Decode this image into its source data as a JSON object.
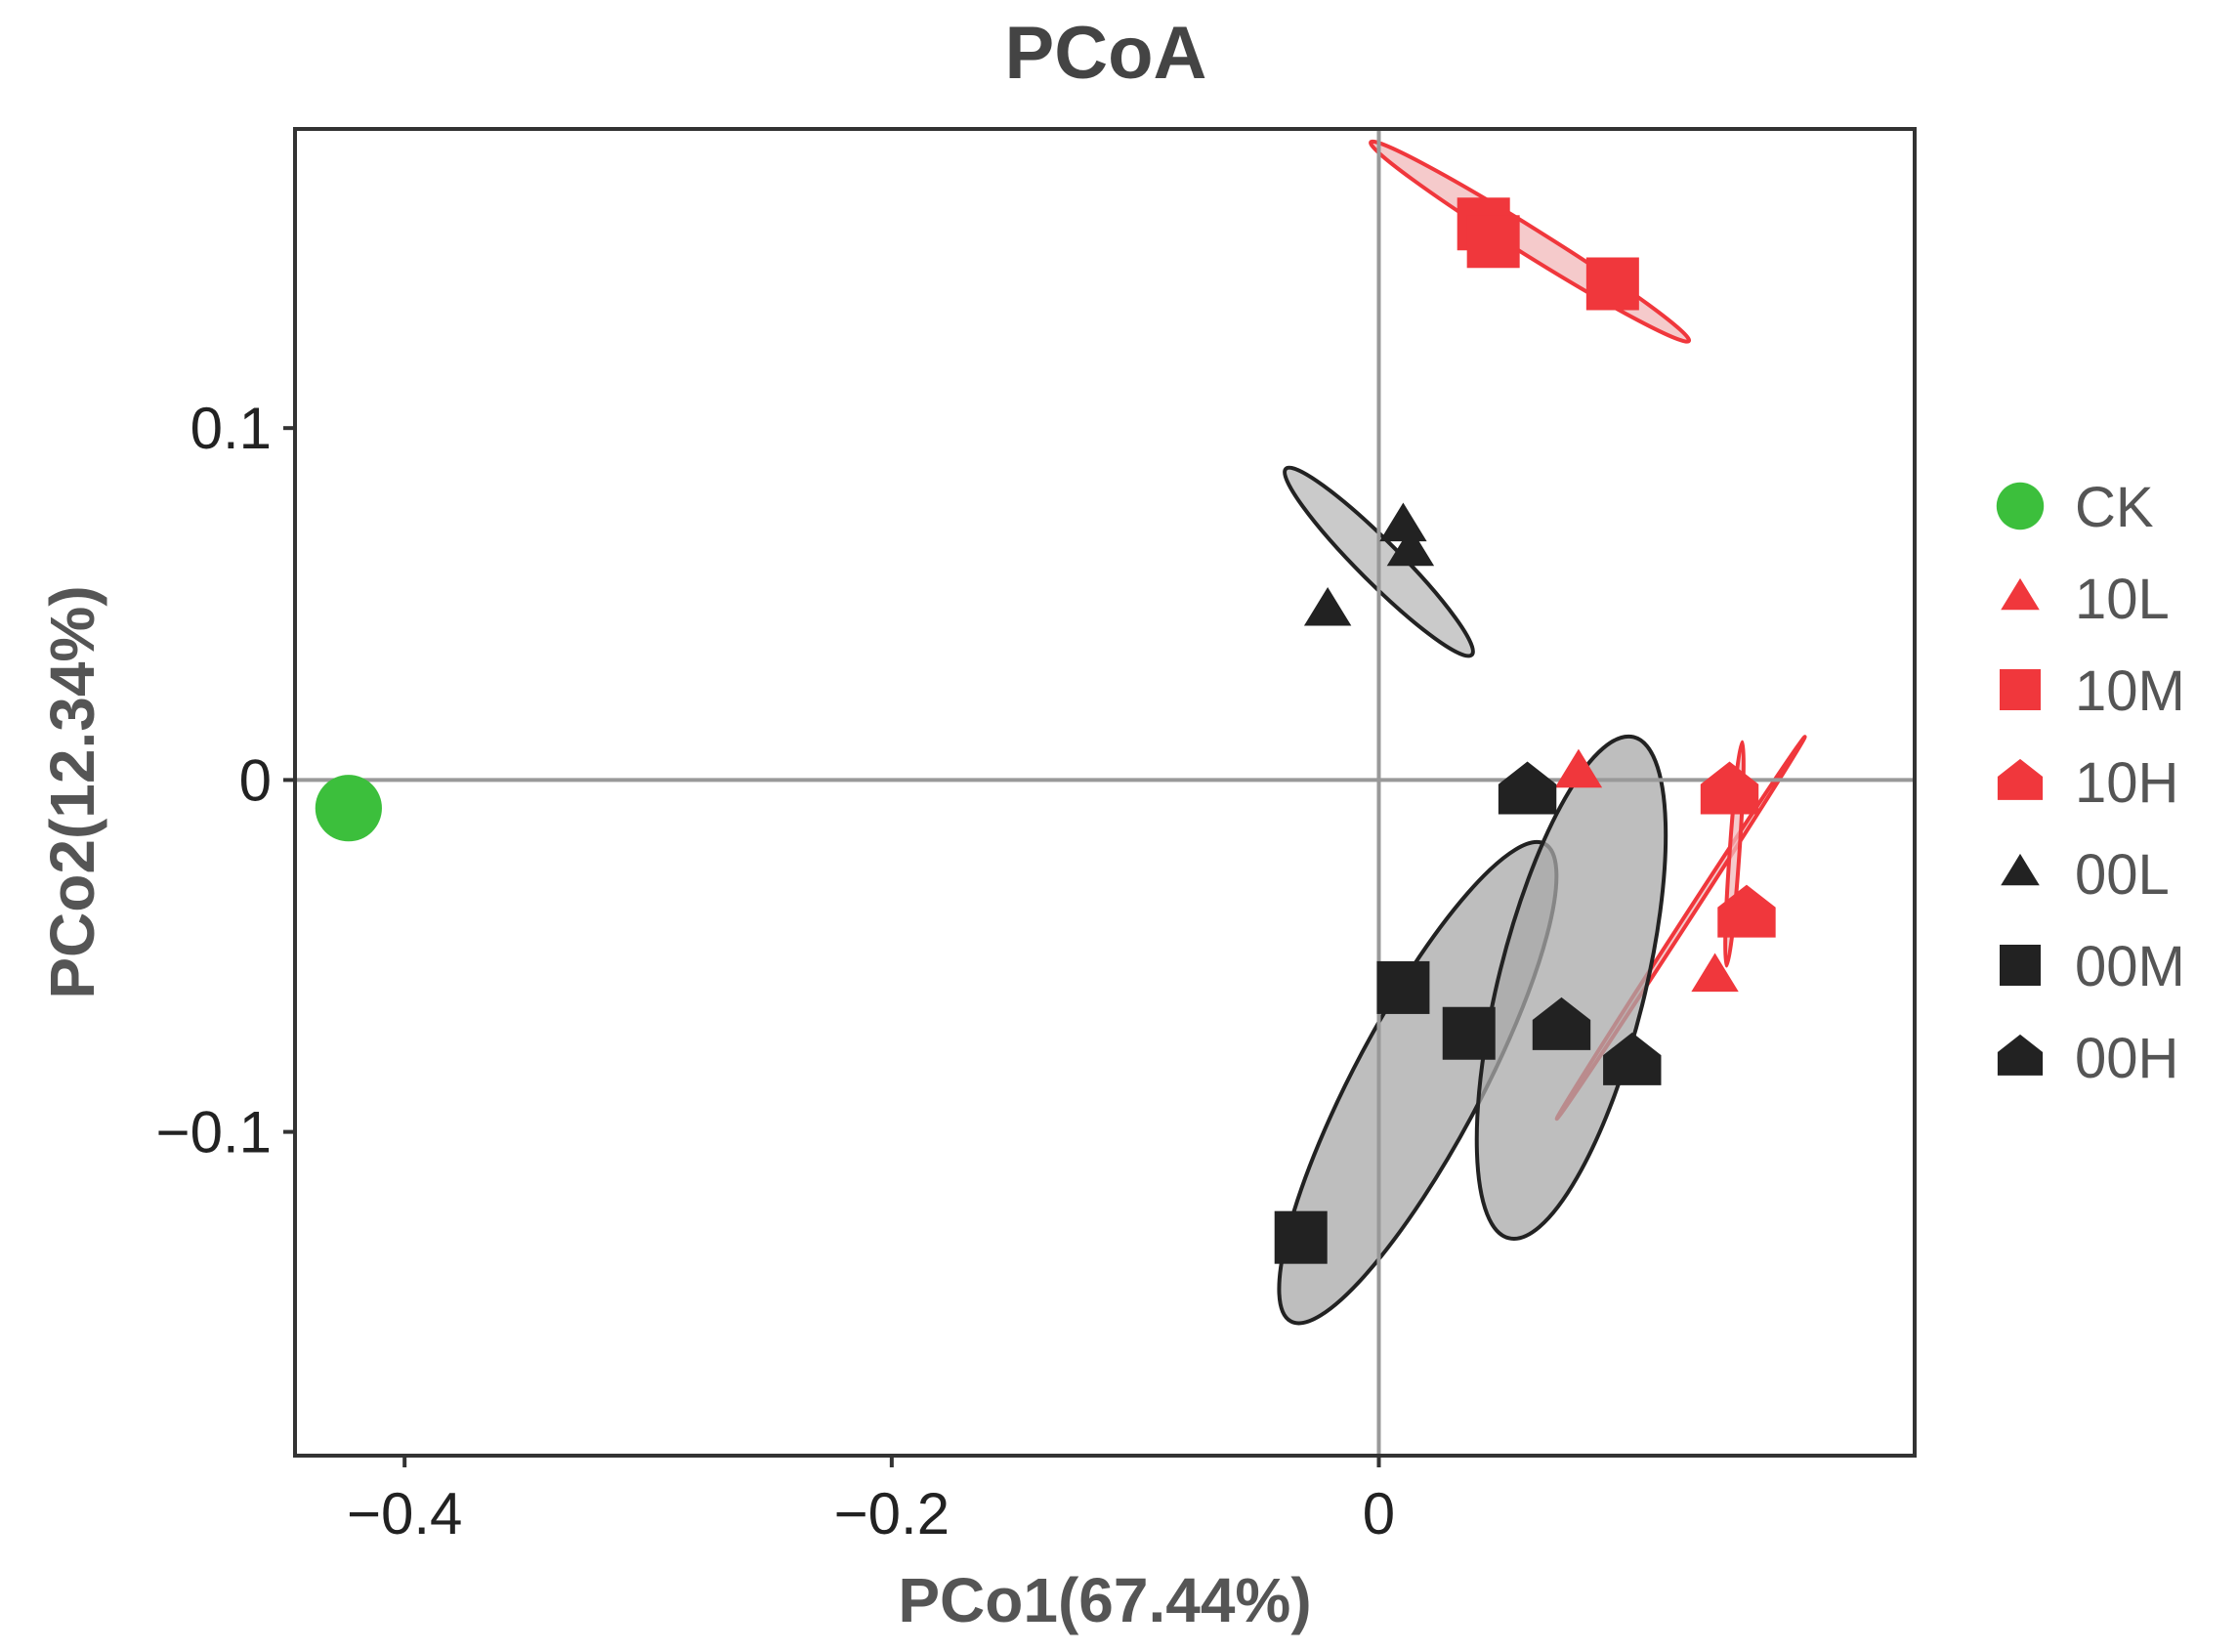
{
  "chart_data": {
    "type": "scatter",
    "title": "PCoA",
    "xlabel": "PCo1(67.44%)",
    "ylabel": "PCo2(12.34%)",
    "xlim": [
      -0.445,
      0.22
    ],
    "ylim": [
      -0.192,
      0.185
    ],
    "x_ticks": [
      {
        "value": -0.4,
        "label": "−0.4"
      },
      {
        "value": -0.2,
        "label": "−0.2"
      },
      {
        "value": 0,
        "label": "0"
      }
    ],
    "y_ticks": [
      {
        "value": 0.1,
        "label": "0.1"
      },
      {
        "value": 0,
        "label": "0"
      },
      {
        "value": -0.1,
        "label": "−0.1"
      }
    ],
    "reference_lines": {
      "x": 0,
      "y": 0
    },
    "series": [
      {
        "name": "CK",
        "marker": "circle",
        "color": "#3cbf3c",
        "points": [
          [
            -0.423,
            -0.008
          ]
        ]
      },
      {
        "name": "10L",
        "marker": "triangle",
        "color": "#f0373c",
        "points": [
          [
            0.082,
            0.002
          ],
          [
            0.138,
            -0.056
          ]
        ]
      },
      {
        "name": "10M",
        "marker": "square",
        "color": "#f0373c",
        "points": [
          [
            0.043,
            0.158
          ],
          [
            0.047,
            0.153
          ],
          [
            0.096,
            0.141
          ]
        ]
      },
      {
        "name": "10H",
        "marker": "pentagon",
        "color": "#f0373c",
        "points": [
          [
            0.144,
            -0.003
          ],
          [
            0.151,
            -0.038
          ]
        ]
      },
      {
        "name": "00L",
        "marker": "triangle",
        "color": "#222222",
        "points": [
          [
            -0.021,
            0.048
          ],
          [
            0.01,
            0.072
          ],
          [
            0.013,
            0.065
          ]
        ]
      },
      {
        "name": "00M",
        "marker": "square",
        "color": "#222222",
        "points": [
          [
            0.01,
            -0.059
          ],
          [
            0.037,
            -0.072
          ],
          [
            -0.032,
            -0.13
          ]
        ]
      },
      {
        "name": "00H",
        "marker": "pentagon",
        "color": "#222222",
        "points": [
          [
            0.061,
            -0.003
          ],
          [
            0.075,
            -0.07
          ],
          [
            0.104,
            -0.08
          ]
        ]
      }
    ],
    "ellipses": [
      {
        "group": "10M",
        "fill": "#f2b8ba",
        "stroke": "#f0373c",
        "center": [
          0.062,
          0.153
        ],
        "semi_axes": [
          0.077,
          0.0055
        ],
        "angle_deg": -32
      },
      {
        "group": "10L",
        "fill": "#f2b8ba",
        "stroke": "#f0373c",
        "center": [
          0.124,
          -0.042
        ],
        "semi_axes": [
          0.0935,
          0.0012
        ],
        "angle_deg": 57
      },
      {
        "group": "10H",
        "fill": "#f2b8ba",
        "stroke": "#f0373c",
        "center": [
          0.146,
          -0.021
        ],
        "semi_axes": [
          0.046,
          0.002
        ],
        "angle_deg": 86
      },
      {
        "group": "00L",
        "fill": "#b8b8b8",
        "stroke": "#222222",
        "center": [
          0.0,
          0.062
        ],
        "semi_axes": [
          0.054,
          0.0085
        ],
        "angle_deg": -45
      },
      {
        "group": "00M",
        "fill": "#a8a8a8",
        "stroke": "#222222",
        "center": [
          0.016,
          -0.086
        ],
        "semi_axes": [
          0.111,
          0.026
        ],
        "angle_deg": 62
      },
      {
        "group": "00H",
        "fill": "#a8a8a8",
        "stroke": "#222222",
        "center": [
          0.079,
          -0.059
        ],
        "semi_axes": [
          0.106,
          0.03
        ],
        "angle_deg": 76
      }
    ],
    "legend": {
      "position": "right",
      "items": [
        "CK",
        "10L",
        "10M",
        "10H",
        "00L",
        "00M",
        "00H"
      ]
    }
  }
}
